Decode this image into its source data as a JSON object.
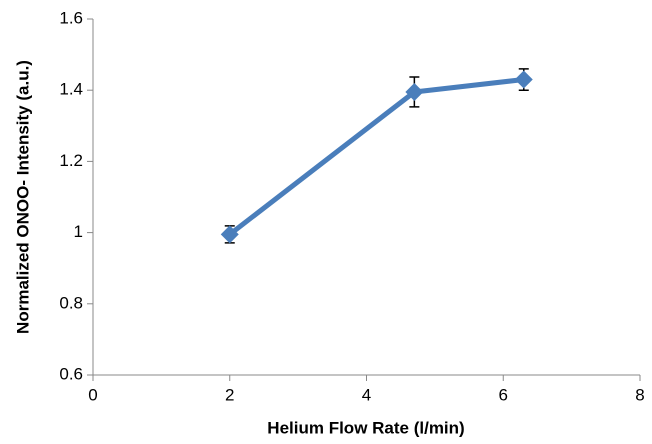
{
  "chart_data": {
    "type": "line",
    "xlabel": "Helium Flow Rate (l/min)",
    "ylabel": "Normalized ONOO- Intensity (a.u.)",
    "x": [
      2,
      4.7,
      6.3
    ],
    "values": [
      0.995,
      1.395,
      1.43
    ],
    "errors": [
      0.024,
      0.042,
      0.03
    ],
    "color": "#4a7ebb",
    "xlim": [
      0,
      8
    ],
    "xticks": [
      0,
      2,
      4,
      6,
      8
    ],
    "ylim": [
      0.6,
      1.6
    ],
    "yticks": [
      0.6,
      0.8,
      1,
      1.2,
      1.4,
      1.6
    ],
    "grid": false
  }
}
